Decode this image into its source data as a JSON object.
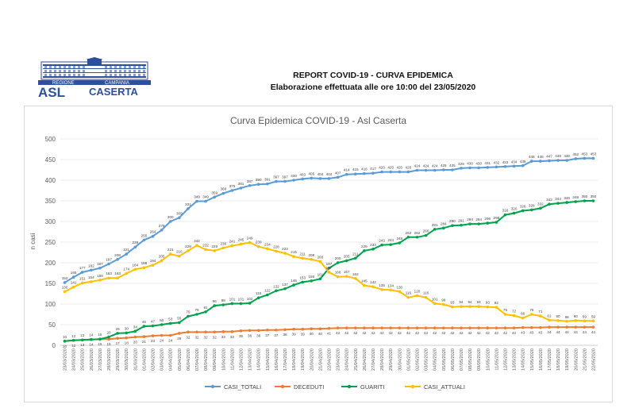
{
  "logo": {
    "region_text": "REGIONE",
    "region_text2": "CAMPANIA",
    "asl_text": "ASL",
    "city_text": "CASERTA"
  },
  "header": {
    "title": "REPORT COVID-19 - CURVA EPIDEMICA",
    "subtitle": "Elaborazione effettuata alle ore 10:00 del 23/05/2020"
  },
  "chart_data": {
    "type": "line",
    "title": "Curva Epidemica COVID-19 - Asl Caserta",
    "xlabel": "",
    "ylabel": "n casi",
    "ylim": [
      0,
      500
    ],
    "yticks": [
      0,
      50,
      100,
      150,
      200,
      250,
      300,
      350,
      400,
      450,
      500
    ],
    "grid": true,
    "legend_position": "bottom",
    "categories": [
      "23/03/2020",
      "24/03/2020",
      "25/03/2020",
      "26/03/2020",
      "27/03/2020",
      "28/03/2020",
      "29/03/2020",
      "30/03/2020",
      "31/03/2020",
      "01/04/2020",
      "02/04/2020",
      "03/04/2020",
      "04/04/2020",
      "05/04/2020",
      "06/04/2020",
      "07/04/2020",
      "08/04/2020",
      "09/04/2020",
      "10/04/2020",
      "11/04/2020",
      "12/04/2020",
      "13/04/2020",
      "14/04/2020",
      "15/04/2020",
      "16/04/2020",
      "17/04/2020",
      "18/04/2020",
      "19/04/2020",
      "20/04/2020",
      "21/04/2020",
      "22/04/2020",
      "23/04/2020",
      "24/04/2020",
      "25/04/2020",
      "26/04/2020",
      "27/04/2020",
      "28/04/2020",
      "29/04/2020",
      "30/04/2020",
      "01/05/2020",
      "02/05/2020",
      "03/05/2020",
      "04/05/2020",
      "05/05/2020",
      "06/05/2020",
      "07/05/2020",
      "08/05/2020",
      "09/05/2020",
      "10/05/2020",
      "11/05/2020",
      "12/05/2020",
      "13/05/2020",
      "14/05/2020",
      "15/05/2020",
      "16/05/2020",
      "17/05/2020",
      "18/05/2020",
      "19/05/2020",
      "20/05/2020",
      "21/05/2020",
      "22/05/2020"
    ],
    "series": [
      {
        "name": "CASI_TOTALI",
        "color": "#5b9bd5",
        "values": [
          152,
          165,
          177,
          182,
          187,
          197,
          208,
          221,
          238,
          255,
          264,
          279,
          300,
          309,
          331,
          349,
          349,
          359,
          368,
          375,
          381,
          387,
          390,
          391,
          397,
          397,
          400,
          403,
          405,
          404,
          404,
          407,
          414,
          415,
          416,
          417,
          420,
          420,
          420,
          420,
          424,
          424,
          424,
          425,
          425,
          429,
          430,
          430,
          431,
          432,
          433,
          434,
          435,
          446,
          446,
          447,
          448,
          448,
          452,
          453,
          453
        ]
      },
      {
        "name": "DECEDUTI",
        "color": "#ed7d31",
        "values": [
          10,
          12,
          13,
          14,
          15,
          15,
          17,
          18,
          20,
          21,
          23,
          24,
          24,
          29,
          32,
          32,
          32,
          32,
          33,
          33,
          35,
          36,
          36,
          37,
          37,
          38,
          39,
          39,
          40,
          40,
          41,
          42,
          42,
          42,
          42,
          42,
          42,
          42,
          42,
          42,
          42,
          42,
          42,
          42,
          42,
          42,
          42,
          42,
          42,
          42,
          42,
          42,
          43,
          43,
          43,
          44,
          44,
          44,
          44,
          44,
          44
        ]
      },
      {
        "name": "GUARITI",
        "color": "#00a14b",
        "values": [
          10,
          12,
          13,
          14,
          15,
          20,
          29,
          30,
          34,
          46,
          47,
          50,
          53,
          55,
          70,
          75,
          81,
          96,
          98,
          101,
          101,
          102,
          115,
          122,
          132,
          137,
          146,
          153,
          156,
          161,
          187,
          200,
          205,
          211,
          229,
          233,
          243,
          244,
          248,
          262,
          262,
          266,
          281,
          284,
          290,
          291,
          294,
          294,
          296,
          298,
          316,
          320,
          326,
          328,
          332,
          342,
          344,
          346,
          348,
          350,
          350
        ]
      },
      {
        "name": "CASI_ATTUALI",
        "color": "#ffc000",
        "values": [
          130,
          141,
          151,
          154,
          158,
          163,
          163,
          174,
          184,
          188,
          194,
          205,
          221,
          216,
          229,
          242,
          232,
          229,
          236,
          241,
          245,
          249,
          239,
          234,
          228,
          223,
          215,
          211,
          208,
          203,
          177,
          166,
          167,
          162,
          145,
          142,
          135,
          134,
          130,
          116,
          120,
          116,
          101,
          99,
          93,
          94,
          94,
          94,
          93,
          92,
          75,
          72,
          66,
          75,
          71,
          61,
          60,
          58,
          60,
          59,
          59
        ]
      }
    ]
  }
}
